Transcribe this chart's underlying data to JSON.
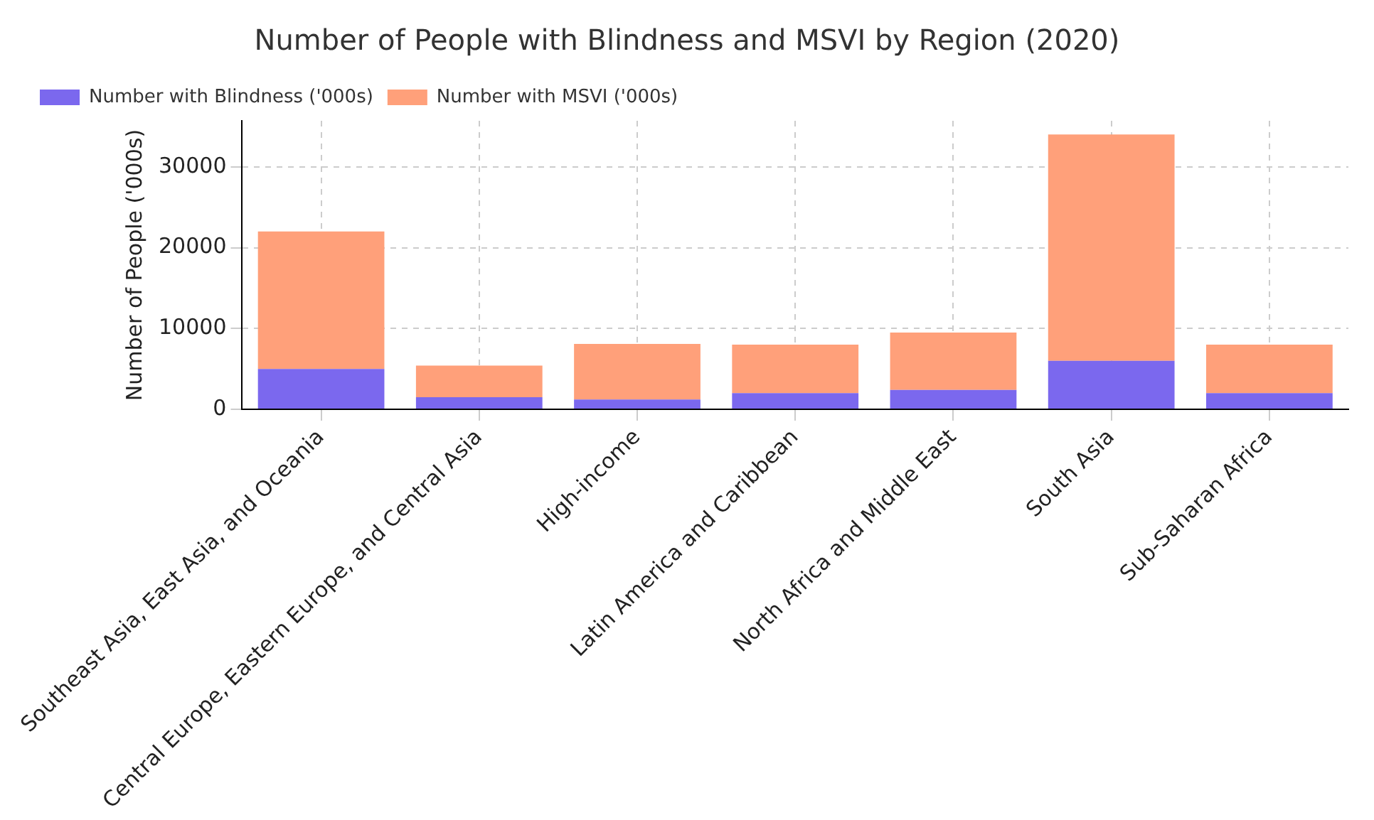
{
  "chart_data": {
    "type": "bar",
    "title": "Number of People with Blindness and MSVI by Region (2020)",
    "ylabel": "Number of People ('000s)",
    "categories": [
      "Southeast Asia, East Asia, and Oceania",
      "Central Europe, Eastern Europe, and Central Asia",
      "High-income",
      "Latin America and Caribbean",
      "North Africa and Middle East",
      "South Asia",
      "Sub-Saharan Africa"
    ],
    "series": [
      {
        "name": "Number with Blindness ('000s)",
        "color": "#7b68ee",
        "values": [
          5000,
          1500,
          1200,
          2000,
          2400,
          6000,
          2000
        ]
      },
      {
        "name": "Number with MSVI ('000s)",
        "color": "#ffa07a",
        "values": [
          17000,
          3900,
          6900,
          6000,
          7100,
          28000,
          6000
        ]
      }
    ],
    "stacked": true,
    "ylim": [
      0,
      35700
    ],
    "yticks": [
      0,
      10000,
      20000,
      30000
    ],
    "grid": true,
    "legend": "top left"
  }
}
